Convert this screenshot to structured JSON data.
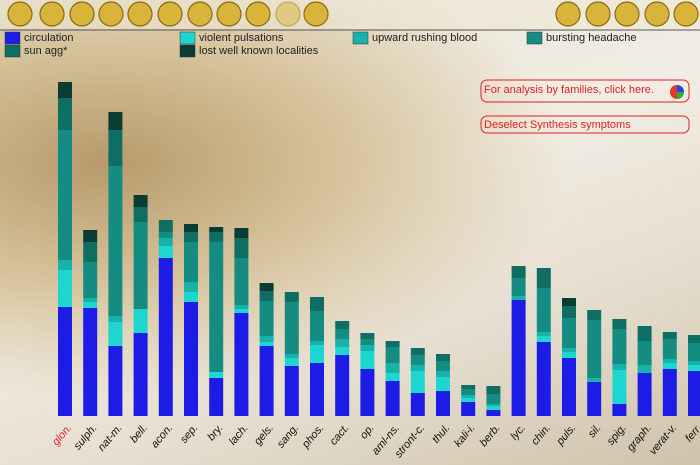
{
  "ui": {
    "buttons": [
      "For analysis by families, click here.",
      "Deselect Synthesis symptoms"
    ]
  },
  "chart_data": {
    "type": "stacked-bar",
    "categories": [
      "glon.",
      "sulph.",
      "nat-m.",
      "bell.",
      "acon.",
      "sep.",
      "bry.",
      "lach.",
      "gels.",
      "sang.",
      "phos.",
      "cact.",
      "op.",
      "aml-ns.",
      "stront-c.",
      "thul.",
      "kali-i.",
      "berb.",
      "lyc.",
      "chin.",
      "puls.",
      "sil.",
      "spig.",
      "graph.",
      "verat-v.",
      "ferr."
    ],
    "selected": 0,
    "selected_color": "#e82020",
    "ylim": [
      0,
      340
    ],
    "series": [
      {
        "name": "circulation",
        "color": "#1c1ce6",
        "values": [
          109,
          108,
          70,
          83,
          158,
          114,
          38,
          103,
          70,
          50,
          53,
          61,
          47,
          35,
          23,
          25,
          14,
          6,
          116,
          74,
          58,
          34,
          12,
          43,
          47,
          45
        ]
      },
      {
        "name": "violent pulsations",
        "color": "#1ed6d0",
        "values": [
          37,
          6,
          24,
          24,
          12,
          10,
          6,
          4,
          4,
          8,
          18,
          8,
          18,
          8,
          22,
          14,
          4,
          4,
          0,
          6,
          6,
          0,
          34,
          0,
          6,
          6
        ]
      },
      {
        "name": "upward rushing blood",
        "color": "#17b2aa",
        "values": [
          10,
          4,
          6,
          0,
          8,
          10,
          0,
          4,
          6,
          4,
          4,
          8,
          6,
          10,
          6,
          6,
          3,
          2,
          4,
          4,
          4,
          4,
          6,
          8,
          4,
          4
        ]
      },
      {
        "name": "bursting headache",
        "color": "#148c82",
        "values": [
          130,
          36,
          150,
          87,
          6,
          40,
          130,
          47,
          35,
          52,
          30,
          10,
          6,
          16,
          10,
          10,
          6,
          10,
          18,
          44,
          30,
          58,
          35,
          24,
          20,
          18
        ]
      },
      {
        "name": "sun agg*",
        "color": "#0f6e64",
        "values": [
          32,
          20,
          36,
          15,
          12,
          10,
          10,
          20,
          10,
          10,
          14,
          8,
          6,
          6,
          7,
          7,
          4,
          8,
          12,
          20,
          12,
          10,
          10,
          15,
          7,
          8
        ]
      },
      {
        "name": "lost well known localities",
        "color": "#0b3c34",
        "values": [
          16,
          12,
          18,
          12,
          0,
          8,
          5,
          10,
          8,
          0,
          0,
          0,
          0,
          0,
          0,
          0,
          0,
          0,
          0,
          0,
          8,
          0,
          0,
          0,
          0,
          0
        ]
      }
    ]
  }
}
